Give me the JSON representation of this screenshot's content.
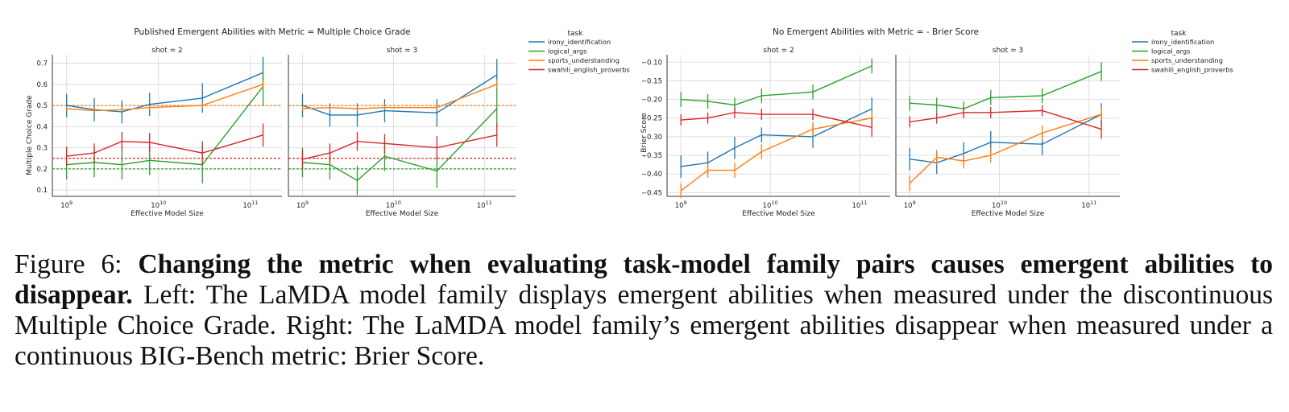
{
  "colors": {
    "irony_identification": "#1f77b4",
    "logical_args": "#2ca02c",
    "sports_understanding": "#ff7f0e",
    "swahili_english_proverbs": "#d62728"
  },
  "caption": {
    "label": "Figure 6:",
    "bold": "Changing the metric when evaluating task-model family pairs causes emergent abilities to disappear.",
    "text": "Left: The LaMDA model family displays emergent abilities when measured under the discontinuous Multiple Choice Grade. Right: The LaMDA model family’s emergent abilities disappear when measured under a continuous BIG-Bench metric: Brier Score."
  },
  "chart_data": [
    {
      "type": "line",
      "title": "Published Emergent Abilities with Metric = Multiple Choice Grade",
      "xlabel": "Effective Model Size",
      "ylabel": "Multiple Choice Grade",
      "x_scale": "log",
      "xlim": [
        700000000.0,
        220000000000.0
      ],
      "ylim": [
        0.07,
        0.74
      ],
      "yticks": [
        0.1,
        0.2,
        0.3,
        0.4,
        0.5,
        0.6,
        0.7
      ],
      "ytick_labels": [
        "0.1",
        "0.2",
        "0.3",
        "0.4",
        "0.5",
        "0.6",
        "0.7"
      ],
      "xtick_labels": [
        "10^9",
        "10^10",
        "10^11"
      ],
      "grid": true,
      "legend": {
        "title": "task",
        "placement": "right",
        "entries": [
          "irony_identification",
          "logical_args",
          "sports_understanding",
          "swahili_english_proverbs"
        ]
      },
      "reference_lines": [
        {
          "series": "irony_identification",
          "y": 0.5
        },
        {
          "series": "sports_understanding",
          "y": 0.5
        },
        {
          "series": "swahili_english_proverbs",
          "y": 0.25
        },
        {
          "series": "logical_args",
          "y": 0.2
        }
      ],
      "x": [
        1000000000.0,
        2000000000.0,
        4000000000.0,
        8000000000.0,
        30000000000.0,
        137000000000.0
      ],
      "panels": [
        {
          "title": "shot = 2",
          "series": [
            {
              "name": "irony_identification",
              "values": [
                0.5,
                0.48,
                0.47,
                0.505,
                0.535,
                0.655
              ],
              "err": [
                0.055,
                0.055,
                0.055,
                0.055,
                0.07,
                0.075
              ]
            },
            {
              "name": "logical_args",
              "values": [
                0.22,
                0.23,
                0.22,
                0.24,
                0.22,
                0.59
              ],
              "err": [
                0.07,
                0.07,
                0.07,
                0.07,
                0.09,
                0.09
              ]
            },
            {
              "name": "sports_understanding",
              "values": [
                0.485,
                0.475,
                0.48,
                0.49,
                0.5,
                0.6
              ],
              "err": [
                0.01,
                0.01,
                0.01,
                0.01,
                0.01,
                0.02
              ]
            },
            {
              "name": "swahili_english_proverbs",
              "values": [
                0.26,
                0.275,
                0.33,
                0.325,
                0.275,
                0.36
              ],
              "err": [
                0.045,
                0.045,
                0.045,
                0.045,
                0.055,
                0.055
              ]
            }
          ]
        },
        {
          "title": "shot = 3",
          "series": [
            {
              "name": "irony_identification",
              "values": [
                0.5,
                0.455,
                0.455,
                0.475,
                0.465,
                0.645
              ],
              "err": [
                0.055,
                0.055,
                0.055,
                0.055,
                0.065,
                0.075
              ]
            },
            {
              "name": "logical_args",
              "values": [
                0.23,
                0.22,
                0.145,
                0.26,
                0.19,
                0.485
              ],
              "err": [
                0.07,
                0.07,
                0.07,
                0.07,
                0.08,
                0.09
              ]
            },
            {
              "name": "sports_understanding",
              "values": [
                0.485,
                0.49,
                0.485,
                0.49,
                0.49,
                0.6
              ],
              "err": [
                0.01,
                0.01,
                0.01,
                0.01,
                0.01,
                0.02
              ]
            },
            {
              "name": "swahili_english_proverbs",
              "values": [
                0.245,
                0.275,
                0.33,
                0.32,
                0.3,
                0.36
              ],
              "err": [
                0.045,
                0.045,
                0.045,
                0.045,
                0.055,
                0.055
              ]
            }
          ]
        }
      ]
    },
    {
      "type": "line",
      "title": "No Emergent Abilities with Metric = - Brier Score",
      "xlabel": "Effective Model Size",
      "ylabel": "- Brier Score",
      "x_scale": "log",
      "xlim": [
        700000000.0,
        220000000000.0
      ],
      "ylim": [
        -0.46,
        -0.08
      ],
      "yticks": [
        -0.45,
        -0.4,
        -0.35,
        -0.3,
        -0.25,
        -0.2,
        -0.15,
        -0.1
      ],
      "ytick_labels": [
        "−0.45",
        "−0.40",
        "−0.35",
        "−0.30",
        "−0.25",
        "−0.20",
        "−0.15",
        "−0.10"
      ],
      "xtick_labels": [
        "10^9",
        "10^10",
        "10^11"
      ],
      "grid": true,
      "legend": {
        "title": "task",
        "placement": "right",
        "entries": [
          "irony_identification",
          "logical_args",
          "sports_understanding",
          "swahili_english_proverbs"
        ]
      },
      "reference_lines": [],
      "x": [
        1000000000.0,
        2000000000.0,
        4000000000.0,
        8000000000.0,
        30000000000.0,
        137000000000.0
      ],
      "panels": [
        {
          "title": "shot = 2",
          "series": [
            {
              "name": "irony_identification",
              "values": [
                -0.38,
                -0.37,
                -0.33,
                -0.295,
                -0.3,
                -0.225
              ],
              "err": [
                0.03,
                0.03,
                0.03,
                0.02,
                0.03,
                0.03
              ]
            },
            {
              "name": "logical_args",
              "values": [
                -0.2,
                -0.205,
                -0.215,
                -0.19,
                -0.18,
                -0.11
              ],
              "err": [
                0.02,
                0.02,
                0.02,
                0.02,
                0.02,
                0.02
              ]
            },
            {
              "name": "sports_understanding",
              "values": [
                -0.445,
                -0.39,
                -0.39,
                -0.34,
                -0.28,
                -0.25
              ],
              "err": [
                0.02,
                0.02,
                0.02,
                0.02,
                0.02,
                0.02
              ]
            },
            {
              "name": "swahili_english_proverbs",
              "values": [
                -0.255,
                -0.25,
                -0.235,
                -0.24,
                -0.24,
                -0.275
              ],
              "err": [
                0.015,
                0.015,
                0.015,
                0.015,
                0.015,
                0.025
              ]
            }
          ]
        },
        {
          "title": "shot = 3",
          "series": [
            {
              "name": "irony_identification",
              "values": [
                -0.36,
                -0.37,
                -0.345,
                -0.315,
                -0.32,
                -0.24
              ],
              "err": [
                0.03,
                0.03,
                0.03,
                0.03,
                0.03,
                0.03
              ]
            },
            {
              "name": "logical_args",
              "values": [
                -0.21,
                -0.215,
                -0.225,
                -0.195,
                -0.19,
                -0.125
              ],
              "err": [
                0.02,
                0.02,
                0.02,
                0.02,
                0.02,
                0.025
              ]
            },
            {
              "name": "sports_understanding",
              "values": [
                -0.425,
                -0.355,
                -0.365,
                -0.35,
                -0.29,
                -0.24
              ],
              "err": [
                0.02,
                0.02,
                0.02,
                0.02,
                0.02,
                0.02
              ]
            },
            {
              "name": "swahili_english_proverbs",
              "values": [
                -0.26,
                -0.25,
                -0.235,
                -0.235,
                -0.23,
                -0.28
              ],
              "err": [
                0.015,
                0.015,
                0.015,
                0.015,
                0.015,
                0.025
              ]
            }
          ]
        }
      ]
    }
  ]
}
